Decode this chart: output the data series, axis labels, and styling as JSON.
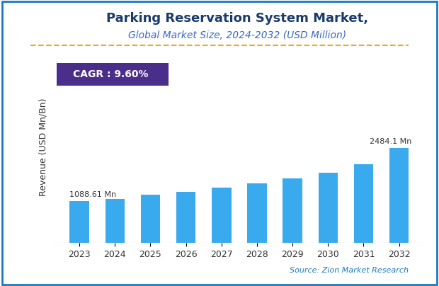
{
  "title_line1": "Parking Reservation System Market,",
  "title_line2": "Global Market Size, 2024-2032 (USD Million)",
  "categories": [
    "2023",
    "2024",
    "2025",
    "2026",
    "2027",
    "2028",
    "2029",
    "2030",
    "2031",
    "2032"
  ],
  "values": [
    1088.61,
    1150.0,
    1260.0,
    1340.0,
    1440.0,
    1560.0,
    1690.0,
    1830.0,
    2050.0,
    2484.1
  ],
  "bar_color": "#3AAAEE",
  "ylabel": "Revenue (USD Mn/Bn)",
  "cagr_text": "CAGR : 9.60%",
  "cagr_bg": "#4B2D8A",
  "cagr_text_color": "#FFFFFF",
  "annotation_first": "1088.61 Mn",
  "annotation_last": "2484.1 Mn",
  "source_text": "Source: Zion Market Research",
  "source_color": "#1a7abf",
  "title_color1": "#1a3a6b",
  "background_color": "#FFFFFF",
  "border_color": "#1a7abf",
  "dashed_line_color": "#F5A623",
  "ylim": [
    0,
    5000
  ],
  "bar_width": 0.55
}
